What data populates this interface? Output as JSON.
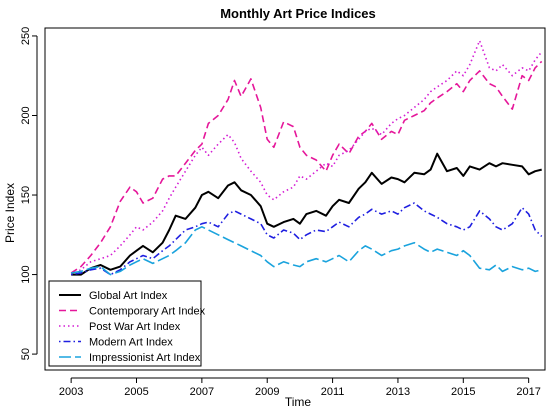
{
  "chart_data": {
    "type": "line",
    "title": "Monthly Art Price Indices",
    "xlabel": "Time",
    "ylabel": "Price Index",
    "xlim": [
      2002.2,
      2017.5
    ],
    "ylim": [
      40,
      255
    ],
    "x_ticks": [
      2003,
      2005,
      2007,
      2009,
      2011,
      2013,
      2015,
      2017
    ],
    "x_tick_labels": [
      "2003",
      "2005",
      "2007",
      "2009",
      "2011",
      "2013",
      "2015",
      "2017"
    ],
    "y_ticks": [
      50,
      100,
      150,
      200,
      250
    ],
    "y_tick_labels": [
      "50",
      "100",
      "150",
      "200",
      "250"
    ],
    "legend_position": "bottom-left",
    "series": [
      {
        "name": "Global Art Index",
        "color": "#000000",
        "line_style": "solid",
        "points": [
          [
            2003.0,
            100
          ],
          [
            2003.3,
            100
          ],
          [
            2003.6,
            104
          ],
          [
            2003.9,
            106
          ],
          [
            2004.2,
            103
          ],
          [
            2004.5,
            105
          ],
          [
            2004.8,
            112
          ],
          [
            2005.0,
            115
          ],
          [
            2005.2,
            118
          ],
          [
            2005.5,
            114
          ],
          [
            2005.8,
            120
          ],
          [
            2006.0,
            128
          ],
          [
            2006.2,
            137
          ],
          [
            2006.5,
            135
          ],
          [
            2006.8,
            142
          ],
          [
            2007.0,
            150
          ],
          [
            2007.2,
            152
          ],
          [
            2007.5,
            148
          ],
          [
            2007.8,
            156
          ],
          [
            2008.0,
            158
          ],
          [
            2008.2,
            153
          ],
          [
            2008.5,
            150
          ],
          [
            2008.8,
            143
          ],
          [
            2009.0,
            132
          ],
          [
            2009.2,
            130
          ],
          [
            2009.5,
            133
          ],
          [
            2009.8,
            135
          ],
          [
            2010.0,
            132
          ],
          [
            2010.2,
            138
          ],
          [
            2010.5,
            140
          ],
          [
            2010.8,
            137
          ],
          [
            2011.0,
            143
          ],
          [
            2011.2,
            147
          ],
          [
            2011.5,
            145
          ],
          [
            2011.8,
            154
          ],
          [
            2012.0,
            158
          ],
          [
            2012.2,
            164
          ],
          [
            2012.5,
            157
          ],
          [
            2012.8,
            161
          ],
          [
            2013.0,
            160
          ],
          [
            2013.2,
            158
          ],
          [
            2013.5,
            164
          ],
          [
            2013.8,
            163
          ],
          [
            2014.0,
            166
          ],
          [
            2014.2,
            176
          ],
          [
            2014.5,
            165
          ],
          [
            2014.8,
            167
          ],
          [
            2015.0,
            162
          ],
          [
            2015.2,
            168
          ],
          [
            2015.5,
            166
          ],
          [
            2015.8,
            170
          ],
          [
            2016.0,
            168
          ],
          [
            2016.2,
            170
          ],
          [
            2016.5,
            169
          ],
          [
            2016.8,
            168
          ],
          [
            2017.0,
            163
          ],
          [
            2017.2,
            165
          ],
          [
            2017.4,
            166
          ]
        ]
      },
      {
        "name": "Contemporary Art Index",
        "color": "#e5179a",
        "line_style": "dashed",
        "points": [
          [
            2003.0,
            101
          ],
          [
            2003.3,
            105
          ],
          [
            2003.6,
            112
          ],
          [
            2003.9,
            120
          ],
          [
            2004.2,
            130
          ],
          [
            2004.5,
            146
          ],
          [
            2004.8,
            155
          ],
          [
            2005.0,
            152
          ],
          [
            2005.2,
            145
          ],
          [
            2005.5,
            148
          ],
          [
            2005.8,
            160
          ],
          [
            2006.0,
            162
          ],
          [
            2006.2,
            162
          ],
          [
            2006.5,
            170
          ],
          [
            2006.8,
            178
          ],
          [
            2007.0,
            182
          ],
          [
            2007.2,
            195
          ],
          [
            2007.5,
            200
          ],
          [
            2007.8,
            210
          ],
          [
            2008.0,
            222
          ],
          [
            2008.2,
            212
          ],
          [
            2008.5,
            223
          ],
          [
            2008.8,
            205
          ],
          [
            2009.0,
            185
          ],
          [
            2009.2,
            180
          ],
          [
            2009.5,
            196
          ],
          [
            2009.8,
            193
          ],
          [
            2010.0,
            180
          ],
          [
            2010.2,
            175
          ],
          [
            2010.5,
            172
          ],
          [
            2010.8,
            165
          ],
          [
            2011.0,
            175
          ],
          [
            2011.2,
            182
          ],
          [
            2011.5,
            176
          ],
          [
            2011.8,
            187
          ],
          [
            2012.0,
            190
          ],
          [
            2012.2,
            195
          ],
          [
            2012.5,
            185
          ],
          [
            2012.8,
            190
          ],
          [
            2013.0,
            188
          ],
          [
            2013.2,
            197
          ],
          [
            2013.5,
            200
          ],
          [
            2013.8,
            203
          ],
          [
            2014.0,
            208
          ],
          [
            2014.2,
            211
          ],
          [
            2014.5,
            215
          ],
          [
            2014.8,
            220
          ],
          [
            2015.0,
            215
          ],
          [
            2015.2,
            222
          ],
          [
            2015.5,
            228
          ],
          [
            2015.8,
            220
          ],
          [
            2016.0,
            218
          ],
          [
            2016.2,
            212
          ],
          [
            2016.5,
            204
          ],
          [
            2016.8,
            225
          ],
          [
            2017.0,
            222
          ],
          [
            2017.2,
            230
          ],
          [
            2017.4,
            234
          ]
        ]
      },
      {
        "name": "Post War Art Index",
        "color": "#d41cd4",
        "line_style": "dotted",
        "points": [
          [
            2003.0,
            100
          ],
          [
            2003.3,
            103
          ],
          [
            2003.6,
            108
          ],
          [
            2003.9,
            110
          ],
          [
            2004.2,
            112
          ],
          [
            2004.5,
            118
          ],
          [
            2004.8,
            125
          ],
          [
            2005.0,
            130
          ],
          [
            2005.2,
            128
          ],
          [
            2005.5,
            133
          ],
          [
            2005.8,
            140
          ],
          [
            2006.0,
            148
          ],
          [
            2006.2,
            155
          ],
          [
            2006.5,
            165
          ],
          [
            2006.8,
            175
          ],
          [
            2007.0,
            180
          ],
          [
            2007.2,
            175
          ],
          [
            2007.5,
            182
          ],
          [
            2007.8,
            188
          ],
          [
            2008.0,
            183
          ],
          [
            2008.2,
            173
          ],
          [
            2008.5,
            165
          ],
          [
            2008.8,
            158
          ],
          [
            2009.0,
            150
          ],
          [
            2009.2,
            147
          ],
          [
            2009.5,
            152
          ],
          [
            2009.8,
            155
          ],
          [
            2010.0,
            162
          ],
          [
            2010.2,
            160
          ],
          [
            2010.5,
            165
          ],
          [
            2010.8,
            170
          ],
          [
            2011.0,
            168
          ],
          [
            2011.2,
            175
          ],
          [
            2011.5,
            178
          ],
          [
            2011.8,
            185
          ],
          [
            2012.0,
            190
          ],
          [
            2012.2,
            192
          ],
          [
            2012.5,
            188
          ],
          [
            2012.8,
            195
          ],
          [
            2013.0,
            198
          ],
          [
            2013.2,
            200
          ],
          [
            2013.5,
            205
          ],
          [
            2013.8,
            210
          ],
          [
            2014.0,
            215
          ],
          [
            2014.2,
            218
          ],
          [
            2014.5,
            222
          ],
          [
            2014.8,
            228
          ],
          [
            2015.0,
            225
          ],
          [
            2015.2,
            232
          ],
          [
            2015.5,
            247
          ],
          [
            2015.8,
            230
          ],
          [
            2016.0,
            228
          ],
          [
            2016.2,
            232
          ],
          [
            2016.5,
            225
          ],
          [
            2016.8,
            230
          ],
          [
            2017.0,
            228
          ],
          [
            2017.2,
            235
          ],
          [
            2017.4,
            240
          ]
        ]
      },
      {
        "name": "Modern Art Index",
        "color": "#1f1fe0",
        "line_style": "dotdash",
        "points": [
          [
            2003.0,
            100
          ],
          [
            2003.3,
            101
          ],
          [
            2003.6,
            103
          ],
          [
            2003.9,
            104
          ],
          [
            2004.2,
            100
          ],
          [
            2004.5,
            103
          ],
          [
            2004.8,
            108
          ],
          [
            2005.0,
            110
          ],
          [
            2005.2,
            112
          ],
          [
            2005.5,
            110
          ],
          [
            2005.8,
            115
          ],
          [
            2006.0,
            118
          ],
          [
            2006.2,
            122
          ],
          [
            2006.5,
            128
          ],
          [
            2006.8,
            130
          ],
          [
            2007.0,
            132
          ],
          [
            2007.2,
            133
          ],
          [
            2007.5,
            130
          ],
          [
            2007.8,
            138
          ],
          [
            2008.0,
            140
          ],
          [
            2008.2,
            138
          ],
          [
            2008.5,
            135
          ],
          [
            2008.8,
            132
          ],
          [
            2009.0,
            125
          ],
          [
            2009.2,
            123
          ],
          [
            2009.5,
            128
          ],
          [
            2009.8,
            126
          ],
          [
            2010.0,
            122
          ],
          [
            2010.2,
            125
          ],
          [
            2010.5,
            128
          ],
          [
            2010.8,
            127
          ],
          [
            2011.0,
            130
          ],
          [
            2011.2,
            133
          ],
          [
            2011.5,
            130
          ],
          [
            2011.8,
            136
          ],
          [
            2012.0,
            138
          ],
          [
            2012.2,
            141
          ],
          [
            2012.5,
            138
          ],
          [
            2012.8,
            140
          ],
          [
            2013.0,
            138
          ],
          [
            2013.2,
            142
          ],
          [
            2013.5,
            145
          ],
          [
            2013.8,
            140
          ],
          [
            2014.0,
            138
          ],
          [
            2014.2,
            136
          ],
          [
            2014.5,
            132
          ],
          [
            2014.8,
            130
          ],
          [
            2015.0,
            128
          ],
          [
            2015.2,
            130
          ],
          [
            2015.5,
            140
          ],
          [
            2015.8,
            135
          ],
          [
            2016.0,
            130
          ],
          [
            2016.2,
            128
          ],
          [
            2016.5,
            132
          ],
          [
            2016.8,
            142
          ],
          [
            2017.0,
            138
          ],
          [
            2017.2,
            128
          ],
          [
            2017.4,
            124
          ]
        ]
      },
      {
        "name": "Impressionist Art Index",
        "color": "#1aa3dd",
        "line_style": "longdash",
        "points": [
          [
            2003.0,
            101
          ],
          [
            2003.3,
            102
          ],
          [
            2003.6,
            104
          ],
          [
            2003.9,
            105
          ],
          [
            2004.2,
            100
          ],
          [
            2004.5,
            102
          ],
          [
            2004.8,
            106
          ],
          [
            2005.0,
            108
          ],
          [
            2005.2,
            110
          ],
          [
            2005.5,
            107
          ],
          [
            2005.8,
            110
          ],
          [
            2006.0,
            112
          ],
          [
            2006.2,
            115
          ],
          [
            2006.5,
            120
          ],
          [
            2006.8,
            128
          ],
          [
            2007.0,
            130
          ],
          [
            2007.2,
            128
          ],
          [
            2007.5,
            125
          ],
          [
            2007.8,
            122
          ],
          [
            2008.0,
            120
          ],
          [
            2008.2,
            118
          ],
          [
            2008.5,
            115
          ],
          [
            2008.8,
            112
          ],
          [
            2009.0,
            108
          ],
          [
            2009.2,
            105
          ],
          [
            2009.5,
            108
          ],
          [
            2009.8,
            106
          ],
          [
            2010.0,
            105
          ],
          [
            2010.2,
            108
          ],
          [
            2010.5,
            110
          ],
          [
            2010.8,
            108
          ],
          [
            2011.0,
            110
          ],
          [
            2011.2,
            112
          ],
          [
            2011.5,
            108
          ],
          [
            2011.8,
            115
          ],
          [
            2012.0,
            118
          ],
          [
            2012.2,
            116
          ],
          [
            2012.5,
            112
          ],
          [
            2012.8,
            115
          ],
          [
            2013.0,
            116
          ],
          [
            2013.2,
            118
          ],
          [
            2013.5,
            120
          ],
          [
            2013.8,
            116
          ],
          [
            2014.0,
            114
          ],
          [
            2014.2,
            116
          ],
          [
            2014.5,
            114
          ],
          [
            2014.8,
            112
          ],
          [
            2015.0,
            115
          ],
          [
            2015.2,
            112
          ],
          [
            2015.5,
            104
          ],
          [
            2015.8,
            103
          ],
          [
            2016.0,
            106
          ],
          [
            2016.2,
            102
          ],
          [
            2016.5,
            105
          ],
          [
            2016.8,
            103
          ],
          [
            2017.0,
            104
          ],
          [
            2017.2,
            102
          ],
          [
            2017.4,
            103
          ]
        ]
      }
    ]
  }
}
